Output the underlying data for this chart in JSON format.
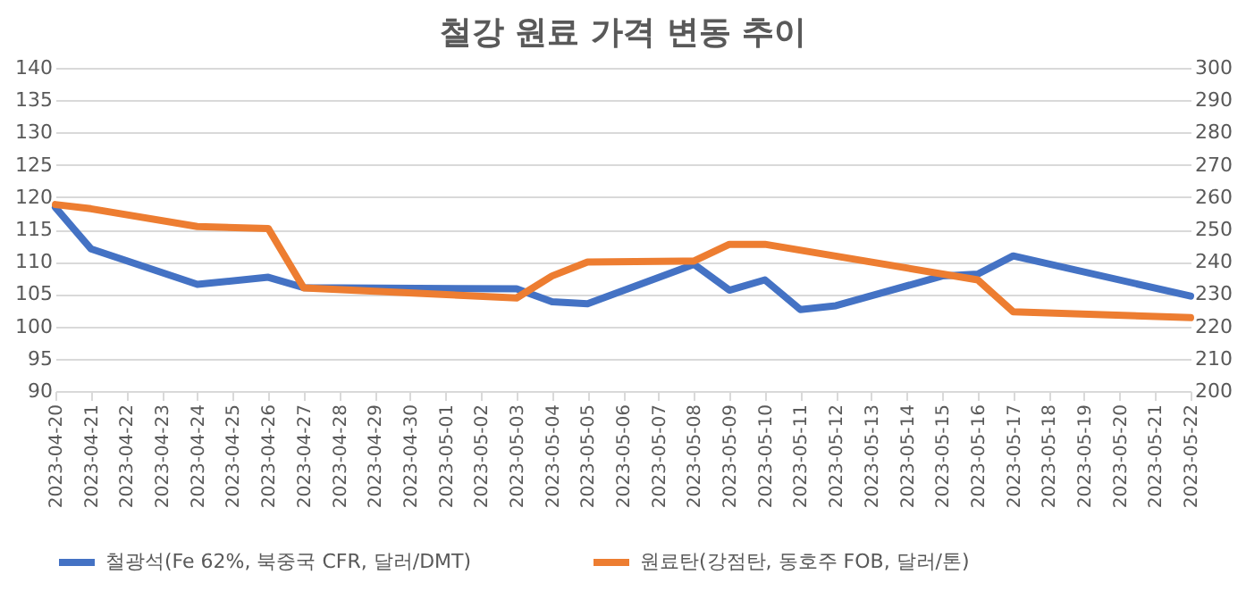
{
  "chart_data": {
    "type": "line",
    "title": "철강 원료 가격 변동 추이",
    "xlim": [
      "2023-04-20",
      "2023-05-22"
    ],
    "xticks": [
      "2023-04-20",
      "2023-04-21",
      "2023-04-22",
      "2023-04-23",
      "2023-04-24",
      "2023-04-25",
      "2023-04-26",
      "2023-04-27",
      "2023-04-28",
      "2023-04-29",
      "2023-04-30",
      "2023-05-01",
      "2023-05-02",
      "2023-05-03",
      "2023-05-04",
      "2023-05-05",
      "2023-05-06",
      "2023-05-07",
      "2023-05-08",
      "2023-05-09",
      "2023-05-10",
      "2023-05-11",
      "2023-05-12",
      "2023-05-13",
      "2023-05-14",
      "2023-05-15",
      "2023-05-16",
      "2023-05-17",
      "2023-05-18",
      "2023-05-19",
      "2023-05-20",
      "2023-05-21",
      "2023-05-22"
    ],
    "ylim": [
      90,
      140
    ],
    "yticks": [
      90,
      95,
      100,
      105,
      110,
      115,
      120,
      125,
      130,
      135,
      140
    ],
    "y2lim": [
      200,
      300
    ],
    "y2ticks": [
      200,
      210,
      220,
      230,
      240,
      250,
      260,
      270,
      280,
      290,
      300
    ],
    "grid": "y",
    "legend": "bottom",
    "series": [
      {
        "name": "철광석(Fe 62%, 북중국 CFR, 달러/DMT)",
        "color": "#4472c4",
        "x": [
          "2023-04-20",
          "2023-04-21",
          "2023-04-24",
          "2023-04-26",
          "2023-04-27",
          "2023-05-03",
          "2023-05-04",
          "2023-05-05",
          "2023-05-08",
          "2023-05-09",
          "2023-05-10",
          "2023-05-11",
          "2023-05-12",
          "2023-05-15",
          "2023-05-16",
          "2023-05-17",
          "2023-05-22"
        ],
        "values": [
          118.4,
          112,
          106.5,
          107.6,
          106,
          105.8,
          103.8,
          103.5,
          109.6,
          105.6,
          107.2,
          102.6,
          103.2,
          107.8,
          108.1,
          110.9,
          104.7
        ]
      },
      {
        "name": "원료탄(강점탄, 동호주 FOB, 달러/톤)",
        "color": "#ed7d31",
        "axis": "y2",
        "x": [
          "2023-04-20",
          "2023-04-21",
          "2023-04-24",
          "2023-04-26",
          "2023-04-27",
          "2023-05-03",
          "2023-05-04",
          "2023-05-05",
          "2023-05-08",
          "2023-05-09",
          "2023-05-10",
          "2023-05-16",
          "2023-05-17",
          "2023-05-22"
        ],
        "values": [
          257.7,
          256.4,
          250.9,
          250.3,
          231.9,
          228.8,
          235.6,
          239.9,
          240.2,
          245.4,
          245.4,
          234.4,
          224.5,
          222.7
        ]
      }
    ]
  }
}
